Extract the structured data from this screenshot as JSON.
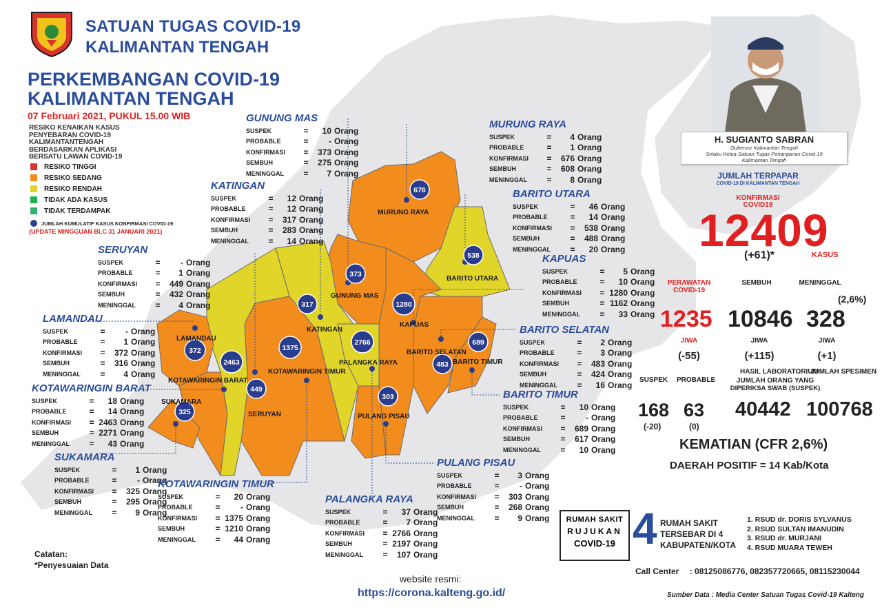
{
  "header": {
    "org_line1": "SATUAN TUGAS COVID-19",
    "org_line2": "KALIMANTAN TENGAH",
    "title_line1": "PERKEMBANGAN COVID-19",
    "title_line2": "KALIMANTAN TENGAH",
    "date": "07 Februari 2021, PUKUL 15.00 WIB"
  },
  "legend": {
    "description": "RESIKO KENAIKAN KASUS PENYEBARAN COVID-19 KALIMANTANTENGAH BERDASARKAN APLIKASI BERSATU LAWAN COVID-19",
    "items": [
      {
        "label": "RESIKO TINGGI",
        "color": "#d9342b"
      },
      {
        "label": "RESIKO SEDANG",
        "color": "#f28c1c"
      },
      {
        "label": "RESIKO RENDAH",
        "color": "#e1d52a"
      },
      {
        "label": "TIDAK ADA KASUS",
        "color": "#22b04b"
      },
      {
        "label": "TIDAK TERDAMPAK",
        "color": "#2fb36d"
      }
    ],
    "dot_note": "JUMLAH KUMULATIF KASUS KONFIRMASI COVID-19",
    "update_note": "(UPDATE MINGGUAN BLC 31 JANUARI 2021)"
  },
  "labels": {
    "suspek": "SUSPEK",
    "probable": "PROBABLE",
    "konfirmasi": "KONFIRMASI",
    "sembuh": "SEMBUH",
    "meninggal": "MENINGGAL",
    "eq": "=",
    "unit": "Orang"
  },
  "regions": [
    {
      "name": "GUNUNG MAS",
      "suspek": "10",
      "probable": "-",
      "konfirmasi": "373",
      "sembuh": "275",
      "meninggal": "7"
    },
    {
      "name": "MURUNG RAYA",
      "suspek": "4",
      "probable": "1",
      "konfirmasi": "676",
      "sembuh": "608",
      "meninggal": "8"
    },
    {
      "name": "KATINGAN",
      "suspek": "12",
      "probable": "12",
      "konfirmasi": "317",
      "sembuh": "283",
      "meninggal": "14"
    },
    {
      "name": "BARITO UTARA",
      "suspek": "46",
      "probable": "14",
      "konfirmasi": "538",
      "sembuh": "488",
      "meninggal": "20"
    },
    {
      "name": "SERUYAN",
      "suspek": "-",
      "probable": "1",
      "konfirmasi": "449",
      "sembuh": "432",
      "meninggal": "4"
    },
    {
      "name": "KAPUAS",
      "suspek": "5",
      "probable": "10",
      "konfirmasi": "1280",
      "sembuh": "1162",
      "meninggal": "33"
    },
    {
      "name": "LAMANDAU",
      "suspek": "-",
      "probable": "1",
      "konfirmasi": "372",
      "sembuh": "316",
      "meninggal": "4"
    },
    {
      "name": "BARITO SELATAN",
      "suspek": "2",
      "probable": "3",
      "konfirmasi": "483",
      "sembuh": "424",
      "meninggal": "16"
    },
    {
      "name": "KOTAWARINGIN BARAT",
      "suspek": "18",
      "probable": "14",
      "konfirmasi": "2463",
      "sembuh": "2271",
      "meninggal": "43"
    },
    {
      "name": "BARITO TIMUR",
      "suspek": "10",
      "probable": "-",
      "konfirmasi": "689",
      "sembuh": "617",
      "meninggal": "10"
    },
    {
      "name": "SUKAMARA",
      "suspek": "1",
      "probable": "-",
      "konfirmasi": "325",
      "sembuh": "295",
      "meninggal": "9"
    },
    {
      "name": "PULANG PISAU",
      "suspek": "3",
      "probable": "-",
      "konfirmasi": "303",
      "sembuh": "268",
      "meninggal": "9"
    },
    {
      "name": "KOTAWARINGIN TIMUR",
      "suspek": "20",
      "probable": "-",
      "konfirmasi": "1375",
      "sembuh": "1210",
      "meninggal": "44"
    },
    {
      "name": "PALANGKA RAYA",
      "suspek": "37",
      "probable": "7",
      "konfirmasi": "2766",
      "sembuh": "2197",
      "meninggal": "107"
    }
  ],
  "map_labels": {
    "murung_raya": "MURUNG RAYA",
    "barito_utara": "BARITO UTARA",
    "gunung_mas": "GUNUNG MAS",
    "katingan": "KATINGAN",
    "kapuas": "KAPUAS",
    "lamandau": "LAMANDAU",
    "kotawaringin_barat": "KOTAWARINGIN BARAT",
    "kotawaringin_timur": "KOTAWARINGIN TIMUR",
    "palangka_raya": "PALANGKA RAYA",
    "barito_selatan": "BARITO SELATAN",
    "barito_timur": "BARITO TIMUR",
    "sukamara": "SUKAMARA",
    "seruyan": "SERUYAN",
    "pulang_pisau": "PULANG PISAU"
  },
  "bubbles": {
    "murung_raya": "676",
    "barito_utara": "538",
    "gunung_mas": "373",
    "katingan": "317",
    "kapuas": "1280",
    "lamandau": "372",
    "kotawaringin_timur": "1375",
    "palangka_raya": "2766",
    "kotawaringin_barat": "2463",
    "seruyan": "449",
    "barito_selatan": "483",
    "barito_timur": "689",
    "pulang_pisau": "303",
    "sukamara": "325"
  },
  "governor": {
    "name": "H. SUGIANTO SABRAN",
    "role1": "Gubernur Kalimantan Tengah",
    "role2": "Selaku Ketua Satuan Tugas Penanganan Covid-19",
    "role3": "Kalimantan Tengah"
  },
  "stats": {
    "jumlah_terpapar": "JUMLAH TERPAPAR",
    "sub_terpapar": "COVID-19 DI KALIMANTAN TENGAH",
    "konfirmasi_label1": "KONFIRMASI",
    "konfirmasi_label2": "COVID19",
    "konfirmasi_value": "12409",
    "konfirmasi_delta": "(+61)*",
    "kasus": "KASUS",
    "perawatan_label1": "PERAWATAN",
    "perawatan_label2": "COVID-19",
    "sembuh_label": "SEMBUH",
    "meninggal_label": "MENINGGAL",
    "meninggal_pct": "(2,6%)",
    "perawatan_value": "1235",
    "sembuh_value": "10846",
    "meninggal_value": "328",
    "jiwa": "JIWA",
    "perawatan_delta": "(-55)",
    "sembuh_delta": "(+115)",
    "meninggal_delta": "(+1)",
    "suspek_label": "SUSPEK",
    "probable_label": "PROBABLE",
    "lab_label": "HASIL LABORATORIUM",
    "spesimen_label": "JUMLAH SPESIMEN",
    "swab_label1": "JUMLAH ORANG YANG",
    "swab_label2": "DIPERIKSA SWAB (SUSPEK)",
    "suspek_value": "168",
    "probable_value": "63",
    "swab_value": "40442",
    "spesimen_value": "100768",
    "suspek_delta": "(-20)",
    "probable_delta": "(0)",
    "kematian": "KEMATIAN (CFR 2,6%)",
    "daerah_positif": "DAERAH POSITIF = 14 Kab/Kota"
  },
  "hospitals": {
    "box_line1": "RUMAH SAKIT",
    "box_line2": "RUJUKAN",
    "box_line3": "COVID-19",
    "count": "4",
    "desc1": "RUMAH SAKIT",
    "desc2": "TERSEBAR DI 4",
    "desc3": "KABUPATEN/KOTA",
    "list": [
      "1. RSUD dr. DORIS SYLVANUS",
      "2. RSUD SULTAN IMANUDIN",
      "3. RSUD dr. MURJANI",
      "4. RSUD MUARA TEWEH"
    ]
  },
  "footer": {
    "call_center_label": "Call Center",
    "call_center_numbers": ": 08125086776, 082357720665, 08115230044",
    "source": "Sumber Data : Media Center Satuan Tugas Covid-19 Kalteng",
    "catatan": "Catatan:",
    "catatan_note": "*Penyesuaian Data",
    "website_label": "website resmi:",
    "website_url": "https://corona.kalteng.go.id/"
  }
}
